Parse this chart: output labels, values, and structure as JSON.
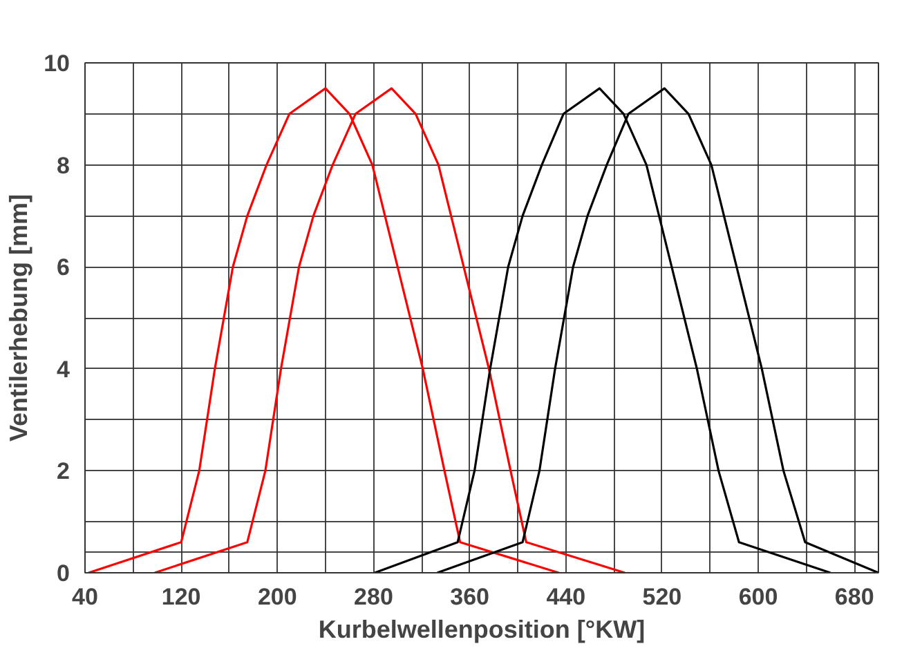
{
  "chart_data": {
    "type": "line",
    "xlabel": "Kurbelwellenposition [°KW]",
    "ylabel": "Ventilerhebung [mm]",
    "xlim": [
      40,
      700
    ],
    "xticks": [
      40,
      {
        "value": 80,
        "label": null
      },
      120,
      {
        "value": 160,
        "label": null
      },
      200,
      {
        "value": 240,
        "label": null
      },
      280,
      {
        "value": 320,
        "label": null
      },
      360,
      {
        "value": 400,
        "label": null
      },
      440,
      {
        "value": 480,
        "label": null
      },
      520,
      {
        "value": 560,
        "label": null
      },
      600,
      {
        "value": 640,
        "label": null
      },
      680
    ],
    "ylim": [
      0,
      10
    ],
    "yticks": [
      0,
      {
        "value": 0.4,
        "label": null
      },
      {
        "value": 1,
        "label": null
      },
      2,
      {
        "value": 3,
        "label": null
      },
      4,
      {
        "value": 5,
        "label": null
      },
      6,
      {
        "value": 7,
        "label": null
      },
      8,
      {
        "value": 9,
        "label": null
      },
      10
    ],
    "grid": true,
    "line_style": "solid",
    "series": [
      {
        "color": "#ff0000",
        "x": [
          43,
          120,
          135,
          148,
          163,
          175,
          191,
          210,
          240,
          260,
          279,
          300,
          321,
          339,
          352,
          434
        ],
        "values": [
          0,
          0.6,
          2,
          4,
          6,
          7,
          8,
          9,
          9.5,
          9,
          8,
          6,
          4,
          2,
          0.6,
          0
        ]
      },
      {
        "color": "#ff0000",
        "x": [
          98,
          175,
          190,
          203,
          218,
          230,
          246,
          265,
          295,
          315,
          334,
          355,
          376,
          394,
          407,
          489
        ],
        "values": [
          0,
          0.6,
          2,
          4,
          6,
          7,
          8,
          9,
          9.5,
          9,
          8,
          6,
          4,
          2,
          0.6,
          0
        ]
      },
      {
        "color": "#000000",
        "x": [
          281,
          350,
          364,
          377,
          392,
          404,
          420,
          438,
          468,
          488,
          507,
          528,
          549,
          567,
          584,
          660
        ],
        "values": [
          0,
          0.6,
          2,
          4,
          6,
          7,
          8,
          9,
          9.5,
          9,
          8,
          6,
          4,
          2,
          0.6,
          0
        ]
      },
      {
        "color": "#000000",
        "x": [
          333,
          404,
          418,
          431,
          446,
          458,
          474,
          492,
          522,
          542,
          561,
          582,
          603,
          621,
          639,
          700
        ],
        "values": [
          0,
          0.6,
          2,
          4,
          6,
          7,
          8,
          9,
          9.5,
          9,
          8,
          6,
          4,
          2,
          0.6,
          0
        ]
      }
    ]
  }
}
